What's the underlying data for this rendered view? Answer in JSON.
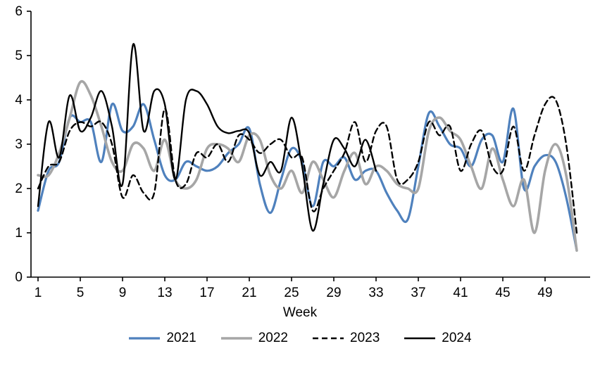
{
  "chart_data": {
    "type": "line",
    "title": "",
    "xlabel": "Week",
    "ylabel": "",
    "x_ticks": [
      1,
      5,
      9,
      13,
      17,
      21,
      25,
      29,
      33,
      37,
      41,
      45,
      49
    ],
    "y_ticks": [
      0,
      1,
      2,
      3,
      4,
      5,
      6
    ],
    "ylim": [
      0,
      6
    ],
    "xlim": [
      1,
      52
    ],
    "grid": false,
    "legend_position": "bottom",
    "x": [
      1,
      2,
      3,
      4,
      5,
      6,
      7,
      8,
      9,
      10,
      11,
      12,
      13,
      14,
      15,
      16,
      17,
      18,
      19,
      20,
      21,
      22,
      23,
      24,
      25,
      26,
      27,
      28,
      29,
      30,
      31,
      32,
      33,
      34,
      35,
      36,
      37,
      38,
      39,
      40,
      41,
      42,
      43,
      44,
      45,
      46,
      47,
      48,
      49,
      50,
      51,
      52
    ],
    "series": [
      {
        "name": "2021",
        "color": "#4f81bd",
        "style": "solid",
        "values": [
          1.5,
          2.4,
          2.6,
          3.6,
          3.5,
          3.5,
          2.6,
          3.9,
          3.3,
          3.4,
          3.9,
          3.1,
          2.3,
          2.2,
          2.6,
          2.5,
          2.4,
          2.5,
          2.8,
          3.0,
          3.35,
          2.1,
          1.45,
          2.2,
          2.9,
          2.6,
          1.6,
          2.6,
          2.5,
          2.7,
          2.2,
          2.4,
          2.4,
          1.9,
          1.5,
          1.3,
          2.5,
          3.7,
          3.4,
          3.0,
          2.9,
          2.5,
          3.1,
          3.2,
          2.6,
          3.8,
          2.0,
          2.5,
          2.75,
          2.6,
          1.8,
          0.6
        ]
      },
      {
        "name": "2022",
        "color": "#a6a6a6",
        "style": "solid",
        "values": [
          2.3,
          2.3,
          2.8,
          3.6,
          4.4,
          4.1,
          3.4,
          2.6,
          2.4,
          3.0,
          2.9,
          2.4,
          3.1,
          2.2,
          2.0,
          2.2,
          2.9,
          3.0,
          2.9,
          2.6,
          3.2,
          3.1,
          2.3,
          2.0,
          2.4,
          1.9,
          2.6,
          2.2,
          1.8,
          2.4,
          2.8,
          2.1,
          2.5,
          2.4,
          2.1,
          2.0,
          2.0,
          3.3,
          3.6,
          3.3,
          3.1,
          2.5,
          2.0,
          2.9,
          2.2,
          1.6,
          2.2,
          1.0,
          2.4,
          3.0,
          2.3,
          0.6
        ]
      },
      {
        "name": "2023",
        "color": "#000000",
        "style": "dashed",
        "values": [
          2.0,
          2.5,
          2.6,
          3.3,
          3.5,
          3.4,
          3.5,
          3.0,
          1.8,
          2.3,
          1.9,
          1.9,
          3.8,
          2.2,
          2.1,
          2.8,
          2.7,
          3.0,
          2.6,
          3.2,
          3.1,
          2.8,
          3.0,
          3.1,
          2.7,
          2.7,
          1.5,
          2.0,
          2.4,
          2.8,
          3.5,
          2.6,
          3.3,
          3.4,
          2.2,
          2.2,
          2.6,
          3.5,
          3.2,
          3.4,
          2.4,
          3.0,
          3.3,
          2.5,
          2.4,
          3.4,
          2.4,
          3.2,
          3.9,
          4.0,
          3.0,
          1.0
        ]
      },
      {
        "name": "2024",
        "color": "#000000",
        "style": "solid",
        "values": [
          1.6,
          3.5,
          2.7,
          4.1,
          3.3,
          3.6,
          4.2,
          3.4,
          2.1,
          5.25,
          3.3,
          4.2,
          3.9,
          2.2,
          4.0,
          4.2,
          3.9,
          3.4,
          3.25,
          3.3,
          3.25,
          2.3,
          2.6,
          2.4,
          3.6,
          2.5,
          1.05,
          2.1,
          3.1,
          2.9,
          2.5,
          3.1,
          2.4,
          null,
          null,
          null,
          null,
          null,
          null,
          null,
          null,
          null,
          null,
          null,
          null,
          null,
          null,
          null,
          null,
          null,
          null,
          null
        ]
      }
    ]
  }
}
